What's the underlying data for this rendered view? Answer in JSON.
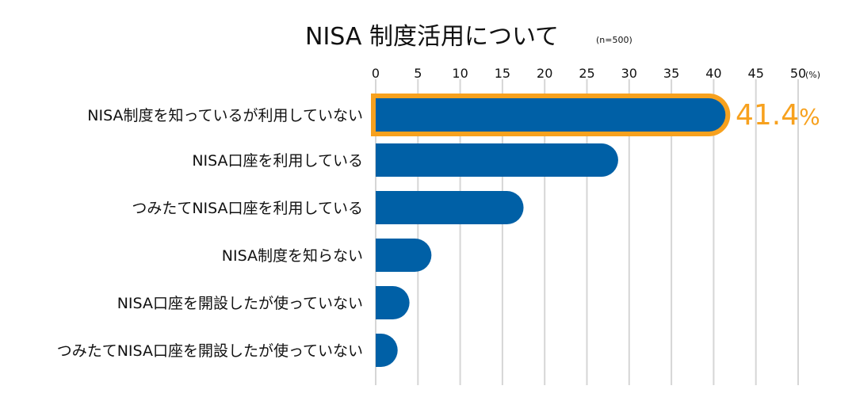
{
  "chart_data": {
    "type": "bar",
    "orientation": "horizontal",
    "title": "NISA 制度活用について",
    "subtitle": "(n=500)",
    "unit_label": "(%)",
    "xlim": [
      0,
      50
    ],
    "xticks": [
      "0",
      "5",
      "10",
      "15",
      "20",
      "25",
      "30",
      "35",
      "40",
      "45",
      "50"
    ],
    "grid": true,
    "categories": [
      "NISA制度を知っているが利用していない",
      "NISA口座を利用している",
      "つみたてNISA口座を利用している",
      "NISA制度を知らない",
      "NISA口座を開設したが使っていない",
      "つみたてNISA口座を開設したが使っていない"
    ],
    "values": [
      41.4,
      28.7,
      17.5,
      6.6,
      4.0,
      2.6
    ],
    "highlight": {
      "index": 0,
      "label": "41.4",
      "percent_sign": "%"
    },
    "colors": {
      "bar": "#0060a6",
      "highlight": "#f7a11e",
      "grid": "#d6d6d6"
    }
  }
}
